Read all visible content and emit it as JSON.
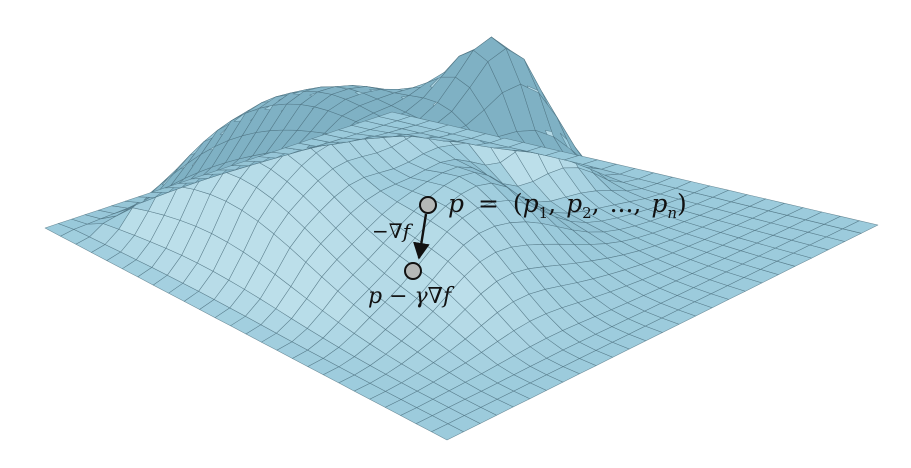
{
  "diagram": {
    "point_p_label": "p = (p₁, p₂, ..., pₙ)",
    "point_p_label_parts": {
      "lhs": "p",
      "equals": "=",
      "open": "(",
      "p1_base": "p",
      "p1_sub": "1",
      "p2_base": "p",
      "p2_sub": "2",
      "dots": "...,",
      "pn_base": "p",
      "pn_sub": "n",
      "close": ")"
    },
    "gradient_label": "−∇f",
    "updated_point_label": "p − γ∇f"
  },
  "colors": {
    "surface": "#9ccbdc",
    "surface_dark": "#7fb0c4",
    "surface_light": "#bfe1ec",
    "grid": "#4a6e7c",
    "marker_fill": "#b5b8b7",
    "marker_stroke": "#111111",
    "arrow": "#111111"
  }
}
